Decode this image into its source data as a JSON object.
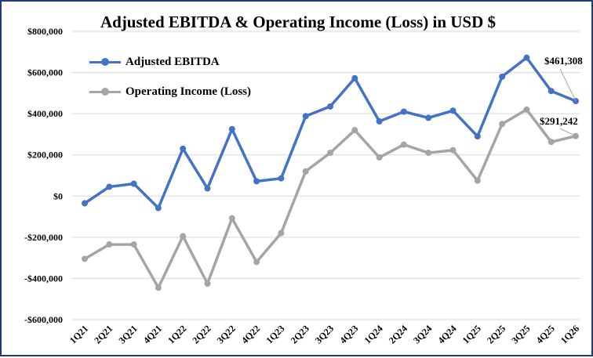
{
  "chart_data": {
    "type": "line",
    "title": "Adjusted EBITDA & Operating Income (Loss) in USD $",
    "categories": [
      "1Q21",
      "2Q21",
      "3Q21",
      "4Q21",
      "1Q22",
      "2Q22",
      "3Q22",
      "4Q22",
      "1Q23",
      "2Q23",
      "3Q23",
      "4Q23",
      "1Q24",
      "2Q24",
      "3Q24",
      "4Q24",
      "1Q25",
      "2Q25",
      "3Q25",
      "4Q25",
      "1Q26"
    ],
    "series": [
      {
        "name": "Adjusted EBITDA",
        "color": "#4472c4",
        "values": [
          -35000,
          45000,
          60000,
          -58000,
          230000,
          37000,
          325000,
          72000,
          86000,
          388000,
          435000,
          572000,
          363000,
          410000,
          380000,
          415000,
          290000,
          580000,
          672000,
          510000,
          461308
        ]
      },
      {
        "name": "Operating Income (Loss)",
        "color": "#a5a5a5",
        "values": [
          -305000,
          -235000,
          -235000,
          -445000,
          -195000,
          -425000,
          -108000,
          -320000,
          -180000,
          120000,
          210000,
          320000,
          188000,
          250000,
          210000,
          223000,
          75000,
          350000,
          420000,
          263000,
          291242
        ]
      }
    ],
    "ylim": [
      -600000,
      800000
    ],
    "yticks": [
      -600000,
      -400000,
      -200000,
      0,
      200000,
      400000,
      600000,
      800000
    ],
    "ytick_labels": [
      "-$600,000",
      "-$400,000",
      "-$200,000",
      "$0",
      "$200,000",
      "$400,000",
      "$600,000",
      "$800,000"
    ],
    "grid": true,
    "legend_position": "top-left",
    "annotations": [
      {
        "text": "$461,308",
        "series": 0,
        "category": "1Q26"
      },
      {
        "text": "$291,242",
        "series": 1,
        "category": "1Q26"
      }
    ]
  }
}
